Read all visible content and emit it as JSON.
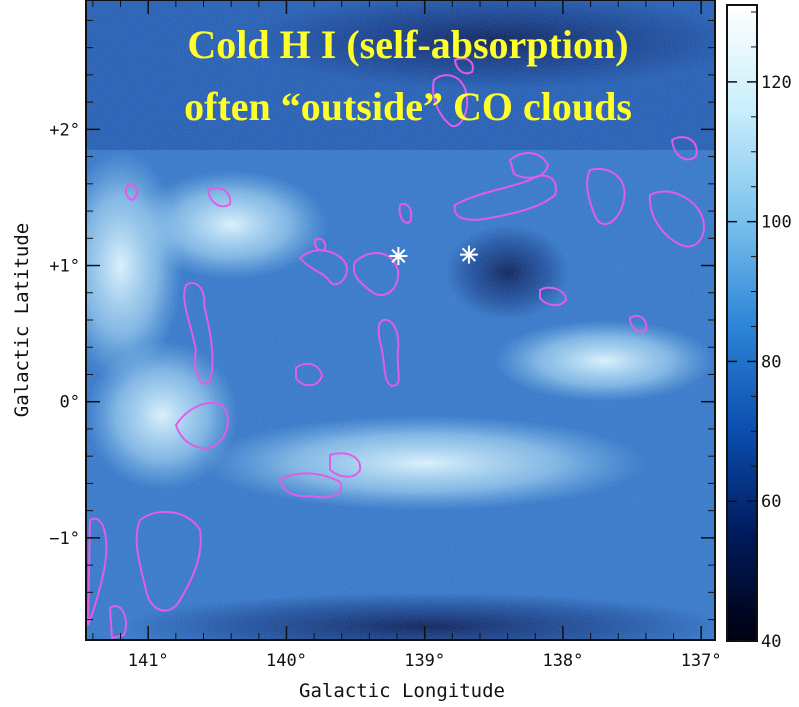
{
  "chart_data": {
    "type": "heatmap",
    "title_lines": [
      "Cold H I (self-absorption)",
      "often “outside” CO clouds"
    ],
    "xlabel": "Galactic Longitude",
    "ylabel": "Galactic Latitude",
    "x_ticks": [
      "141°",
      "140°",
      "139°",
      "138°",
      "137°"
    ],
    "x_tick_values": [
      141,
      140,
      139,
      138,
      137
    ],
    "y_ticks": [
      "+2°",
      "+1°",
      "0°",
      "−1°"
    ],
    "y_tick_values": [
      2,
      1,
      0,
      -1
    ],
    "xlim": [
      141.45,
      136.9
    ],
    "ylim": [
      -1.75,
      2.95
    ],
    "colorbar": {
      "ticks": [
        "120",
        "100",
        "80",
        "60",
        "40"
      ],
      "tick_values": [
        120,
        100,
        80,
        60,
        40
      ],
      "range": [
        40,
        131
      ],
      "colors": [
        "#000010",
        "#001a5c",
        "#0b4fb0",
        "#2f86d8",
        "#7cc3ee",
        "#c8edfb",
        "#ffffff"
      ]
    },
    "stars_deg": [
      [
        139.19,
        1.07
      ],
      [
        138.68,
        1.08
      ]
    ],
    "contour_color": "#e15ce8",
    "series": [
      {
        "name": "",
        "regions": [
          {
            "l": 141.2,
            "b": 1.0,
            "rx": 0.45,
            "ry": 0.85,
            "value": 122
          },
          {
            "l": 140.9,
            "b": -0.1,
            "rx": 0.55,
            "ry": 0.55,
            "value": 120
          },
          {
            "l": 140.4,
            "b": 1.3,
            "rx": 0.7,
            "ry": 0.4,
            "value": 110
          },
          {
            "l": 139.0,
            "b": -0.45,
            "rx": 1.6,
            "ry": 0.35,
            "value": 110
          },
          {
            "l": 137.7,
            "b": 0.3,
            "rx": 0.8,
            "ry": 0.3,
            "value": 108
          },
          {
            "l": 138.5,
            "b": 2.65,
            "rx": 1.8,
            "ry": 0.35,
            "value": 45
          },
          {
            "l": 138.4,
            "b": 0.95,
            "rx": 0.45,
            "ry": 0.35,
            "value": 65
          },
          {
            "l": 139.0,
            "b": -1.65,
            "rx": 2.2,
            "ry": 0.25,
            "value": 70
          }
        ]
      }
    ]
  }
}
